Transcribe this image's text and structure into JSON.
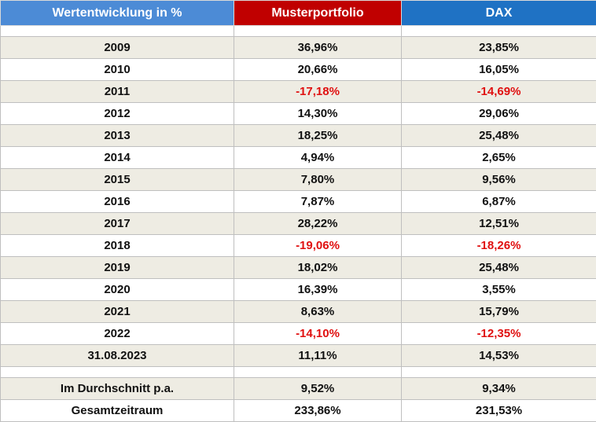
{
  "header": {
    "label": "Wertentwicklung in %",
    "col1": "Musterportfolio",
    "col2": "DAX"
  },
  "rows": [
    {
      "label": "2009",
      "mp": "36,96%",
      "dax": "23,85%",
      "mp_neg": false,
      "dax_neg": false
    },
    {
      "label": "2010",
      "mp": "20,66%",
      "dax": "16,05%",
      "mp_neg": false,
      "dax_neg": false
    },
    {
      "label": "2011",
      "mp": "-17,18%",
      "dax": "-14,69%",
      "mp_neg": true,
      "dax_neg": true
    },
    {
      "label": "2012",
      "mp": "14,30%",
      "dax": "29,06%",
      "mp_neg": false,
      "dax_neg": false
    },
    {
      "label": "2013",
      "mp": "18,25%",
      "dax": "25,48%",
      "mp_neg": false,
      "dax_neg": false
    },
    {
      "label": "2014",
      "mp": "4,94%",
      "dax": "2,65%",
      "mp_neg": false,
      "dax_neg": false
    },
    {
      "label": "2015",
      "mp": "7,80%",
      "dax": "9,56%",
      "mp_neg": false,
      "dax_neg": false
    },
    {
      "label": "2016",
      "mp": "7,87%",
      "dax": "6,87%",
      "mp_neg": false,
      "dax_neg": false
    },
    {
      "label": "2017",
      "mp": "28,22%",
      "dax": "12,51%",
      "mp_neg": false,
      "dax_neg": false
    },
    {
      "label": "2018",
      "mp": "-19,06%",
      "dax": "-18,26%",
      "mp_neg": true,
      "dax_neg": true
    },
    {
      "label": "2019",
      "mp": "18,02%",
      "dax": "25,48%",
      "mp_neg": false,
      "dax_neg": false
    },
    {
      "label": "2020",
      "mp": "16,39%",
      "dax": "3,55%",
      "mp_neg": false,
      "dax_neg": false
    },
    {
      "label": "2021",
      "mp": "8,63%",
      "dax": "15,79%",
      "mp_neg": false,
      "dax_neg": false
    },
    {
      "label": "2022",
      "mp": "-14,10%",
      "dax": "-12,35%",
      "mp_neg": true,
      "dax_neg": true
    },
    {
      "label": "31.08.2023",
      "mp": "11,11%",
      "dax": "14,53%",
      "mp_neg": false,
      "dax_neg": false
    }
  ],
  "summary": [
    {
      "label": "Im Durchschnitt p.a.",
      "mp": "9,52%",
      "dax": "9,34%"
    },
    {
      "label": "Gesamtzeitraum",
      "mp": "233,86%",
      "dax": "231,53%"
    }
  ],
  "colors": {
    "header_label_bg": "#4c8bd6",
    "header_musterportfolio_bg": "#c00000",
    "header_dax_bg": "#1f72c4",
    "row_shade_bg": "#eeece3",
    "negative_text": "#e01010"
  }
}
